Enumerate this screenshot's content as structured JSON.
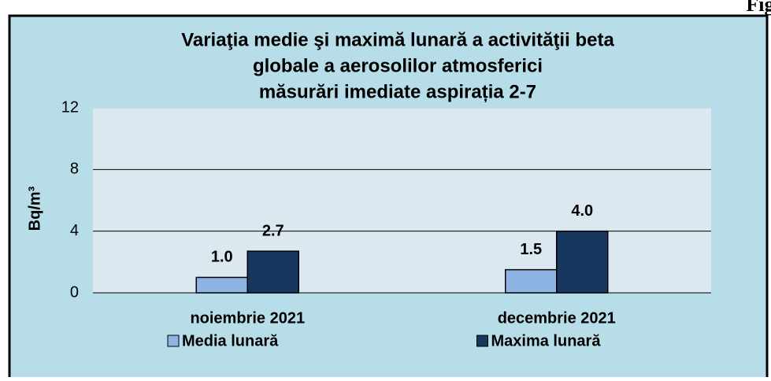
{
  "figure_label": "Fig.",
  "chart_data": {
    "type": "bar",
    "title": [
      "Variaţia medie şi maximă lunară a activităţii beta",
      "globale  a aerosolilor atmosferici",
      "măsurări imediate aspirația 2-7"
    ],
    "y_label": "Bq/m³",
    "categories": [
      "noiembrie 2021",
      "decembrie 2021"
    ],
    "series": [
      {
        "name": "Media lunară",
        "color": "#8eb4e3",
        "values": [
          1.0,
          1.5
        ],
        "value_labels": [
          "1.0",
          "1.5"
        ]
      },
      {
        "name": "Maxima lunară",
        "color": "#17375e",
        "values": [
          2.7,
          4.0
        ],
        "value_labels": [
          "2.7",
          "4.0"
        ]
      }
    ],
    "ylim": [
      0,
      12
    ],
    "yticks": [
      0,
      4,
      8,
      12
    ],
    "grid": true,
    "legend": "bottom"
  }
}
